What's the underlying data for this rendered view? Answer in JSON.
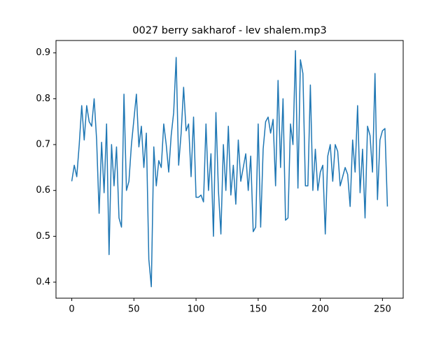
{
  "chart_data": {
    "type": "line",
    "title": "0027 berry sakharof - lev shalem.mp3",
    "x": [
      0,
      2,
      4,
      6,
      8,
      10,
      12,
      14,
      16,
      18,
      20,
      22,
      24,
      26,
      28,
      30,
      32,
      34,
      36,
      38,
      40,
      42,
      44,
      46,
      48,
      50,
      52,
      54,
      56,
      58,
      60,
      62,
      64,
      66,
      68,
      70,
      72,
      74,
      76,
      78,
      80,
      82,
      84,
      86,
      88,
      90,
      92,
      94,
      96,
      98,
      100,
      102,
      104,
      106,
      108,
      110,
      112,
      114,
      116,
      118,
      120,
      122,
      124,
      126,
      128,
      130,
      132,
      134,
      136,
      138,
      140,
      142,
      144,
      146,
      148,
      150,
      152,
      154,
      156,
      158,
      160,
      162,
      164,
      166,
      168,
      170,
      172,
      174,
      176,
      178,
      180,
      182,
      184,
      186,
      188,
      190,
      192,
      194,
      196,
      198,
      200,
      202,
      204,
      206,
      208,
      210,
      212,
      214,
      216,
      218,
      220,
      222,
      224,
      226,
      228,
      230,
      232,
      234,
      236,
      238,
      240,
      242,
      244,
      246,
      248,
      250,
      252,
      254
    ],
    "series": [
      {
        "color": "#1f77b4",
        "values": [
          0.62,
          0.655,
          0.63,
          0.7,
          0.785,
          0.71,
          0.785,
          0.75,
          0.74,
          0.8,
          0.71,
          0.55,
          0.705,
          0.595,
          0.745,
          0.46,
          0.7,
          0.61,
          0.695,
          0.54,
          0.52,
          0.81,
          0.6,
          0.62,
          0.7,
          0.755,
          0.81,
          0.695,
          0.74,
          0.65,
          0.725,
          0.45,
          0.39,
          0.695,
          0.61,
          0.665,
          0.65,
          0.745,
          0.7,
          0.64,
          0.72,
          0.77,
          0.89,
          0.655,
          0.725,
          0.825,
          0.73,
          0.745,
          0.63,
          0.76,
          0.585,
          0.585,
          0.59,
          0.575,
          0.745,
          0.6,
          0.68,
          0.5,
          0.77,
          0.6,
          0.505,
          0.7,
          0.6,
          0.74,
          0.59,
          0.655,
          0.57,
          0.71,
          0.62,
          0.65,
          0.68,
          0.6,
          0.675,
          0.51,
          0.52,
          0.745,
          0.52,
          0.69,
          0.75,
          0.76,
          0.725,
          0.755,
          0.61,
          0.84,
          0.65,
          0.8,
          0.535,
          0.54,
          0.745,
          0.7,
          0.905,
          0.605,
          0.885,
          0.855,
          0.61,
          0.61,
          0.83,
          0.6,
          0.69,
          0.6,
          0.64,
          0.655,
          0.505,
          0.675,
          0.7,
          0.62,
          0.7,
          0.685,
          0.61,
          0.63,
          0.65,
          0.635,
          0.565,
          0.71,
          0.64,
          0.785,
          0.595,
          0.69,
          0.54,
          0.74,
          0.72,
          0.64,
          0.855,
          0.58,
          0.71,
          0.73,
          0.735,
          0.565
        ]
      }
    ],
    "xlim": [
      -12.7,
      266.7
    ],
    "ylim": [
      0.365,
      0.927
    ],
    "xticks": [
      0,
      50,
      100,
      150,
      200,
      250
    ],
    "yticks": [
      0.4,
      0.5,
      0.6,
      0.7,
      0.8,
      0.9
    ]
  }
}
